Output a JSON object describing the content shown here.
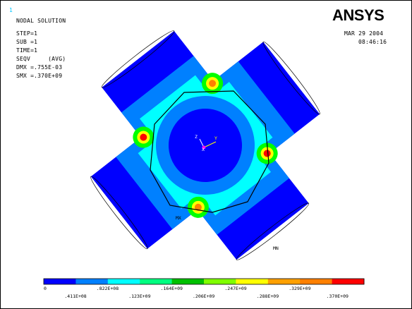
{
  "window_number": "1",
  "title_block": {
    "line1": "NODAL SOLUTION",
    "step": "STEP=1",
    "sub": "SUB =1",
    "time": "TIME=1",
    "result": "SEQV     (AVG)",
    "dmx": "DMX =.755E-03",
    "smx": "SMX =.370E+09"
  },
  "logo": "ANSYS",
  "date": "MAR 29 2004",
  "time": "08:46:16",
  "labels": {
    "mx": "MX",
    "mn": "MN",
    "axis_x": "X",
    "axis_y": "Y",
    "axis_z": "Z"
  },
  "legend": {
    "ticks_upper": [
      "0",
      ".822E+08",
      ".164E+09",
      ".247E+09",
      ".329E+09"
    ],
    "ticks_lower": [
      ".411E+08",
      ".123E+09",
      ".206E+09",
      ".288E+09",
      ".370E+09"
    ],
    "colors": [
      "#0000ff",
      "#0080ff",
      "#00ffff",
      "#00ff80",
      "#00c000",
      "#80ff00",
      "#ffff00",
      "#ffa000",
      "#ff8000",
      "#ff0000"
    ]
  },
  "colors": {
    "blue": "#0000ff",
    "light_blue": "#0080ff",
    "cyan": "#00ffff",
    "green": "#00ff00",
    "yellow": "#ffff00",
    "orange": "#ff8000",
    "red": "#ff0000"
  }
}
